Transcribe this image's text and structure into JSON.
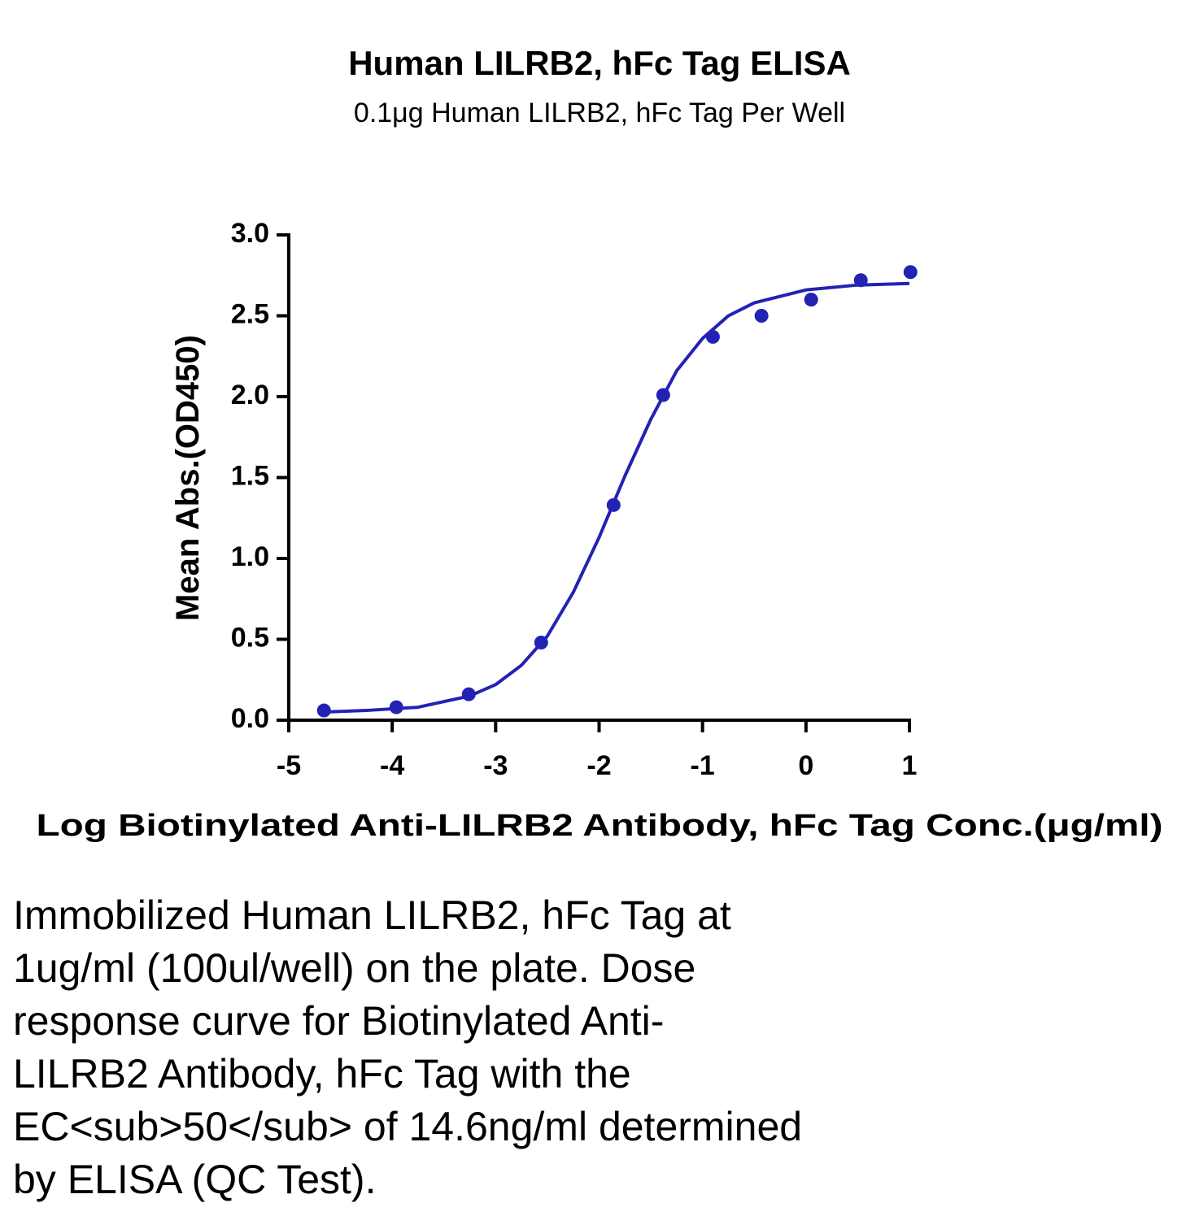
{
  "chart_data": {
    "type": "scatter",
    "title": "Human LILRB2, hFc Tag ELISA",
    "subtitle": "0.1μg Human LILRB2, hFc Tag Per Well",
    "x_label": "Log Biotinylated Anti-LILRB2 Antibody, hFc Tag Conc.(μg/ml)",
    "y_label": "Mean Abs.(OD450)",
    "xlim": [
      -5,
      1
    ],
    "xticks": [
      -5,
      -4,
      -3,
      -2,
      -1,
      0,
      1
    ],
    "ylim": [
      0,
      3
    ],
    "yticks": [
      {
        "value": 0,
        "label": "0.0"
      },
      0.5,
      {
        "value": 1,
        "label": "1.0"
      },
      1.5,
      {
        "value": 2,
        "label": "2.0"
      },
      2.5,
      {
        "value": 3,
        "label": "3.0"
      }
    ],
    "series": [
      {
        "type": "scatter",
        "color": "#2222b4",
        "x": [
          -4.66,
          -3.96,
          -3.26,
          -2.56,
          -1.86,
          -1.38,
          -0.9,
          -0.43,
          0.05,
          0.53,
          1.01
        ],
        "values": [
          0.06,
          0.08,
          0.16,
          0.48,
          1.33,
          2.01,
          2.37,
          2.5,
          2.6,
          2.72,
          2.77
        ]
      },
      {
        "type": "line",
        "color": "#2222b4",
        "x": [
          -4.66,
          -4.25,
          -3.75,
          -3.25,
          -3.0,
          -2.75,
          -2.5,
          -2.25,
          -2.0,
          -1.75,
          -1.5,
          -1.25,
          -1.0,
          -0.75,
          -0.5,
          0,
          0.5,
          1.0
        ],
        "values": [
          0.05,
          0.06,
          0.08,
          0.15,
          0.22,
          0.34,
          0.52,
          0.79,
          1.13,
          1.51,
          1.86,
          2.16,
          2.36,
          2.5,
          2.58,
          2.66,
          2.69,
          2.7
        ]
      }
    ]
  },
  "caption": {
    "lines": [
      "Immobilized Human LILRB2, hFc Tag at",
      "1ug/ml (100ul/well) on the plate. Dose",
      "response curve for Biotinylated Anti-",
      "LILRB2 Antibody, hFc Tag with the",
      "EC<sub>50</sub> of 14.6ng/ml determined",
      "by ELISA (QC Test)."
    ]
  }
}
